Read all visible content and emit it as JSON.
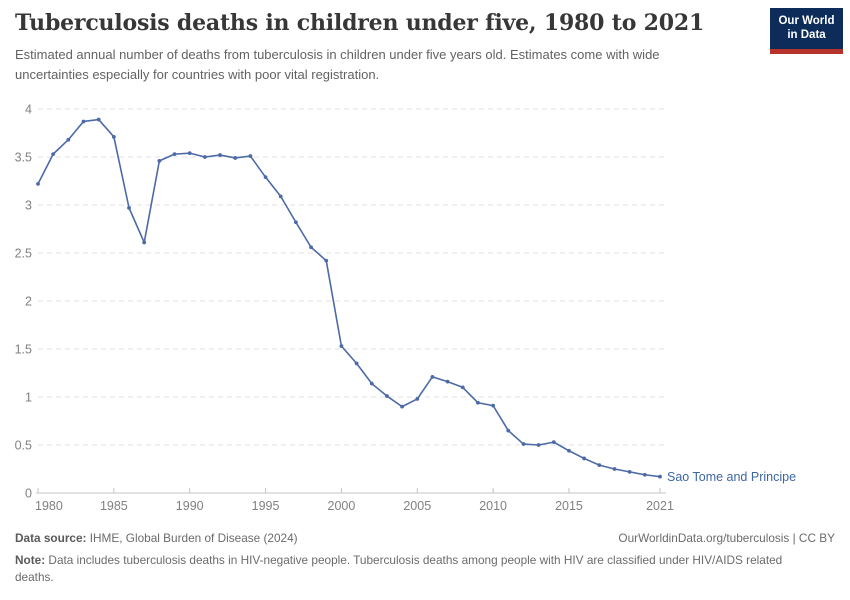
{
  "header": {
    "title": "Tuberculosis deaths in children under five, 1980 to 2021",
    "subtitle": "Estimated annual number of deaths from tuberculosis in children under five years old. Estimates come with wide uncertainties especially for countries with poor vital registration.",
    "logo": {
      "line1": "Our World",
      "line2": "in Data",
      "bg_color": "#0d2c5a",
      "stripe_color": "#b5332a"
    }
  },
  "chart_data": {
    "type": "line",
    "title": "Tuberculosis deaths in children under five, 1980 to 2021",
    "xlabel": "",
    "ylabel": "",
    "xlim": [
      1980,
      2021
    ],
    "ylim": [
      0,
      4
    ],
    "x_ticks": [
      1980,
      1985,
      1990,
      1995,
      2000,
      2005,
      2010,
      2015,
      2021
    ],
    "y_ticks": [
      0,
      0.5,
      1,
      1.5,
      2,
      2.5,
      3,
      3.5,
      4
    ],
    "grid": "horizontal-dashed",
    "legend": "end-of-line-label",
    "x": [
      1980,
      1981,
      1982,
      1983,
      1984,
      1985,
      1986,
      1987,
      1988,
      1989,
      1990,
      1991,
      1992,
      1993,
      1994,
      1995,
      1996,
      1997,
      1998,
      1999,
      2000,
      2001,
      2002,
      2003,
      2004,
      2005,
      2006,
      2007,
      2008,
      2009,
      2010,
      2011,
      2012,
      2013,
      2014,
      2015,
      2016,
      2017,
      2018,
      2019,
      2020,
      2021
    ],
    "series": [
      {
        "name": "Sao Tome and Principe",
        "values": [
          3.22,
          3.53,
          3.68,
          3.87,
          3.89,
          3.71,
          2.97,
          2.61,
          3.46,
          3.53,
          3.54,
          3.5,
          3.52,
          3.49,
          3.51,
          3.29,
          3.09,
          2.82,
          2.56,
          2.42,
          1.53,
          1.35,
          1.14,
          1.01,
          0.9,
          0.98,
          1.21,
          1.16,
          1.1,
          0.94,
          0.91,
          0.65,
          0.51,
          0.5,
          0.53,
          0.44,
          0.36,
          0.29,
          0.25,
          0.22,
          0.19,
          0.17
        ]
      }
    ],
    "style": {
      "line_color": "#4c6aa5",
      "marker_radius": 1.9,
      "grid_color": "#e2e2e2",
      "axis_color": "#c4c4c4",
      "tick_label_color": "#818181",
      "series_label_color": "#3d66a5"
    }
  },
  "footer": {
    "source_label": "Data source:",
    "source_text": " IHME, Global Burden of Disease (2024)",
    "link_text": "OurWorldinData.org/tuberculosis | CC BY",
    "note_label": "Note:",
    "note_text": " Data includes tuberculosis deaths in HIV-negative people. Tuberculosis deaths among people with HIV are classified under HIV/AIDS related deaths."
  }
}
